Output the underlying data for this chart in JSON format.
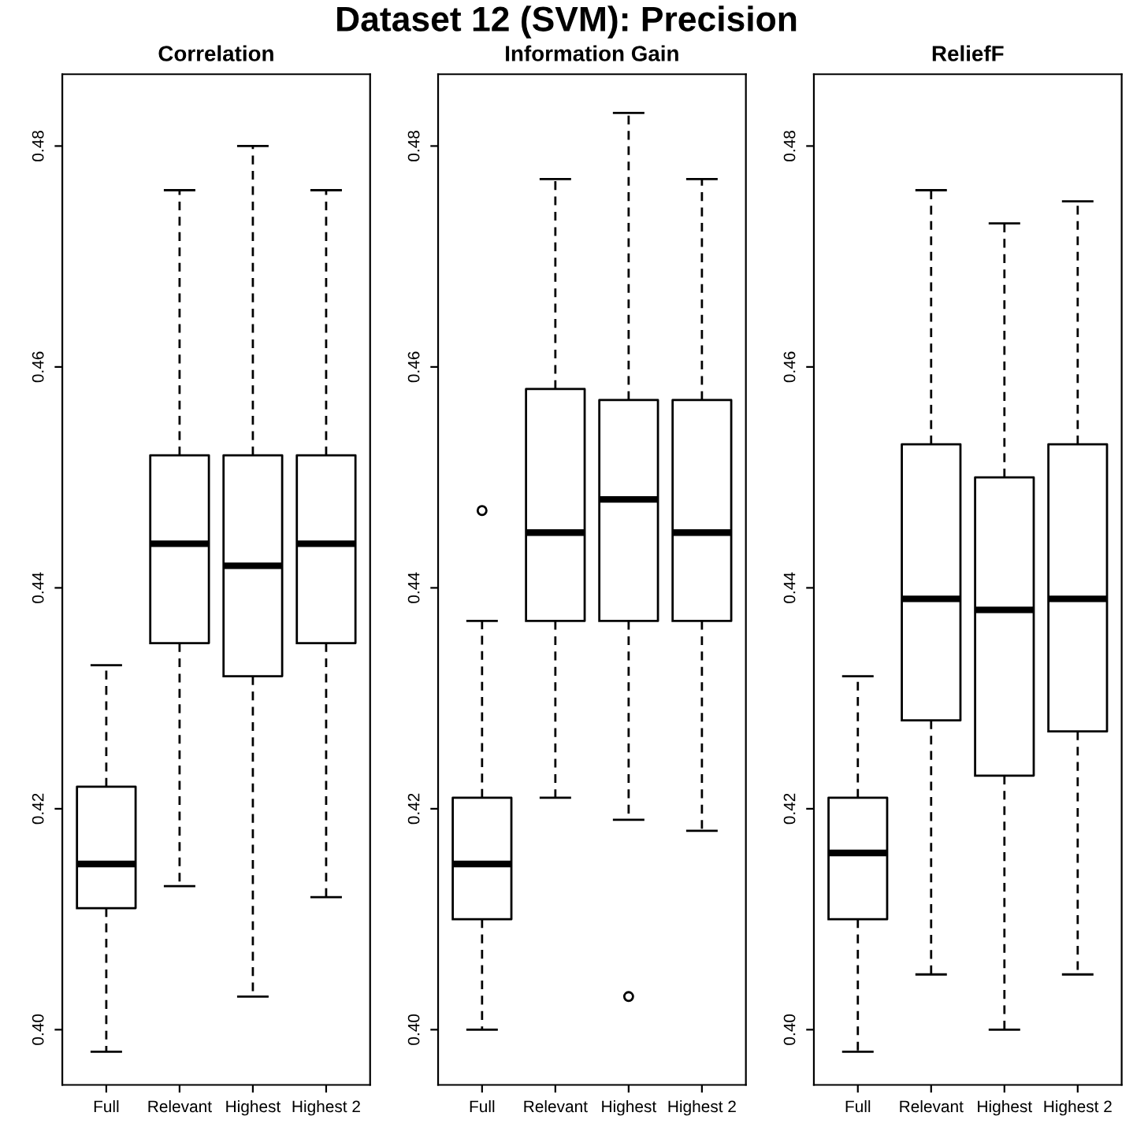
{
  "chart_data": [
    {
      "type": "box",
      "subtitle": "Correlation",
      "categories": [
        "Full",
        "Relevant",
        "Highest",
        "Highest 2"
      ],
      "ylim": [
        0.395,
        0.4865
      ],
      "yticks": [
        {
          "value": 0.4,
          "label": "0.40"
        },
        {
          "value": 0.42,
          "label": "0.42"
        },
        {
          "value": 0.44,
          "label": "0.44"
        },
        {
          "value": 0.46,
          "label": "0.46"
        },
        {
          "value": 0.48,
          "label": "0.48"
        }
      ],
      "grid": false,
      "legend": false,
      "boxes": [
        {
          "low": 0.398,
          "q1": 0.411,
          "median": 0.415,
          "q3": 0.422,
          "high": 0.433
        },
        {
          "low": 0.413,
          "q1": 0.435,
          "median": 0.444,
          "q3": 0.452,
          "high": 0.476
        },
        {
          "low": 0.403,
          "q1": 0.432,
          "median": 0.442,
          "q3": 0.452,
          "high": 0.48
        },
        {
          "low": 0.412,
          "q1": 0.435,
          "median": 0.444,
          "q3": 0.452,
          "high": 0.476
        }
      ]
    },
    {
      "type": "box",
      "title": "Dataset 12 (SVM): Precision",
      "subtitle": "Information Gain",
      "categories": [
        "Full",
        "Relevant",
        "Highest",
        "Highest 2"
      ],
      "ylim": [
        0.395,
        0.4865
      ],
      "yticks": [
        {
          "value": 0.4,
          "label": "0.40"
        },
        {
          "value": 0.42,
          "label": "0.42"
        },
        {
          "value": 0.44,
          "label": "0.44"
        },
        {
          "value": 0.46,
          "label": "0.46"
        },
        {
          "value": 0.48,
          "label": "0.48"
        }
      ],
      "grid": false,
      "legend": false,
      "boxes": [
        {
          "low": 0.4,
          "q1": 0.41,
          "median": 0.415,
          "q3": 0.421,
          "high": 0.437,
          "outliers": [
            0.447
          ]
        },
        {
          "low": 0.421,
          "q1": 0.437,
          "median": 0.445,
          "q3": 0.458,
          "high": 0.477
        },
        {
          "low": 0.419,
          "q1": 0.437,
          "median": 0.448,
          "q3": 0.457,
          "high": 0.483,
          "outliers": [
            0.403
          ]
        },
        {
          "low": 0.418,
          "q1": 0.437,
          "median": 0.445,
          "q3": 0.457,
          "high": 0.477
        }
      ]
    },
    {
      "type": "box",
      "subtitle": "ReliefF",
      "categories": [
        "Full",
        "Relevant",
        "Highest",
        "Highest 2"
      ],
      "ylim": [
        0.395,
        0.4865
      ],
      "yticks": [
        {
          "value": 0.4,
          "label": "0.40"
        },
        {
          "value": 0.42,
          "label": "0.42"
        },
        {
          "value": 0.44,
          "label": "0.44"
        },
        {
          "value": 0.46,
          "label": "0.46"
        },
        {
          "value": 0.48,
          "label": "0.48"
        }
      ],
      "grid": false,
      "legend": false,
      "boxes": [
        {
          "low": 0.398,
          "q1": 0.41,
          "median": 0.416,
          "q3": 0.421,
          "high": 0.432
        },
        {
          "low": 0.405,
          "q1": 0.428,
          "median": 0.439,
          "q3": 0.453,
          "high": 0.476
        },
        {
          "low": 0.4,
          "q1": 0.423,
          "median": 0.438,
          "q3": 0.45,
          "high": 0.473
        },
        {
          "low": 0.405,
          "q1": 0.427,
          "median": 0.439,
          "q3": 0.453,
          "high": 0.475
        }
      ]
    }
  ]
}
